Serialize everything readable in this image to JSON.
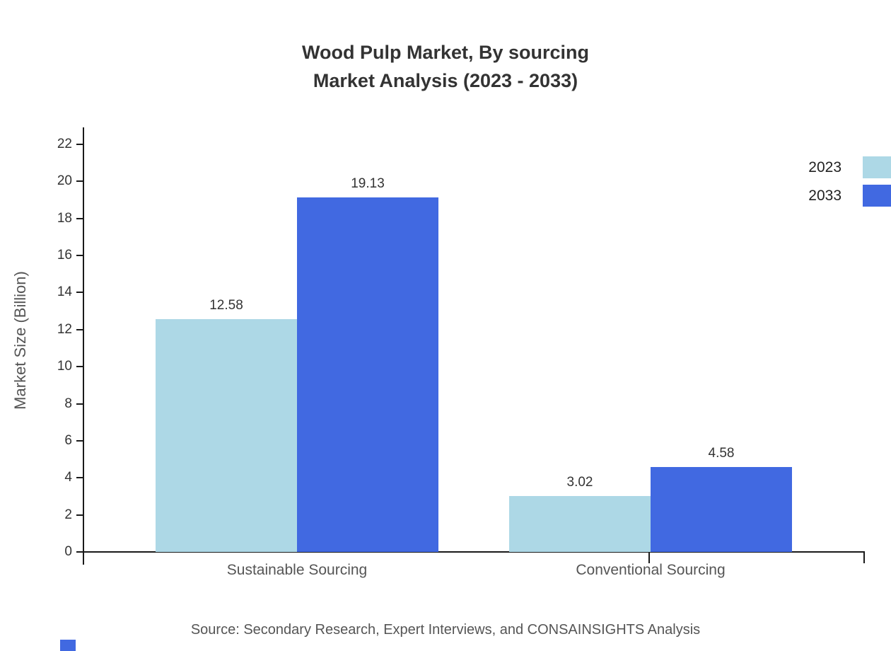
{
  "chart_data": {
    "type": "bar",
    "title": "Wood Pulp Market, By sourcing",
    "subtitle": "Market Analysis (2023 - 2033)",
    "ylabel": "Market Size (Billion)",
    "xlabel": "",
    "categories": [
      "Sustainable Sourcing",
      "Conventional Sourcing"
    ],
    "series": [
      {
        "name": "2023",
        "color": "#add8e6",
        "values": [
          12.58,
          3.02
        ]
      },
      {
        "name": "2033",
        "color": "#4169e1",
        "values": [
          19.13,
          4.58
        ]
      }
    ],
    "ylim": [
      0,
      22
    ],
    "ytick_step": 2,
    "grid": false,
    "legend_position": "top-right"
  },
  "source_note": "Source: Secondary Research, Expert Interviews, and CONSAINSIGHTS Analysis",
  "colors": {
    "axis": "#1a1a1a",
    "title": "#333333",
    "tick_label": "#333333",
    "category_label": "#555555",
    "source": "#555555",
    "accent_2023": "#add8e6",
    "accent_2033": "#4169e1"
  }
}
